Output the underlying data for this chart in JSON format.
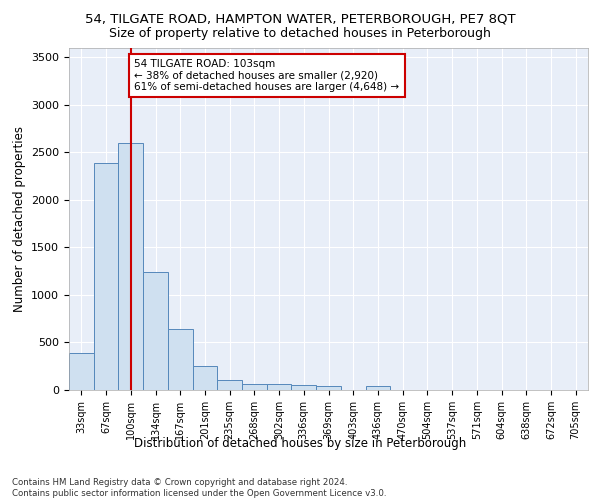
{
  "title1": "54, TILGATE ROAD, HAMPTON WATER, PETERBOROUGH, PE7 8QT",
  "title2": "Size of property relative to detached houses in Peterborough",
  "xlabel": "Distribution of detached houses by size in Peterborough",
  "ylabel": "Number of detached properties",
  "categories": [
    "33sqm",
    "67sqm",
    "100sqm",
    "134sqm",
    "167sqm",
    "201sqm",
    "235sqm",
    "268sqm",
    "302sqm",
    "336sqm",
    "369sqm",
    "403sqm",
    "436sqm",
    "470sqm",
    "504sqm",
    "537sqm",
    "571sqm",
    "604sqm",
    "638sqm",
    "672sqm",
    "705sqm"
  ],
  "values": [
    390,
    2390,
    2600,
    1240,
    640,
    250,
    100,
    65,
    60,
    55,
    40,
    0,
    40,
    0,
    0,
    0,
    0,
    0,
    0,
    0,
    0
  ],
  "bar_color": "#cfe0f0",
  "bar_edge_color": "#5588bb",
  "vline_x": 2,
  "vline_color": "#cc0000",
  "annotation_text": "54 TILGATE ROAD: 103sqm\n← 38% of detached houses are smaller (2,920)\n61% of semi-detached houses are larger (4,648) →",
  "annotation_box_color": "#ffffff",
  "annotation_box_edge": "#cc0000",
  "footnote": "Contains HM Land Registry data © Crown copyright and database right 2024.\nContains public sector information licensed under the Open Government Licence v3.0.",
  "ylim": [
    0,
    3600
  ],
  "background_color": "#e8eef8",
  "grid_color": "#ffffff",
  "title1_fontsize": 9.5,
  "title2_fontsize": 9,
  "xlabel_fontsize": 8.5,
  "ylabel_fontsize": 8.5,
  "footnote_fontsize": 6.2
}
